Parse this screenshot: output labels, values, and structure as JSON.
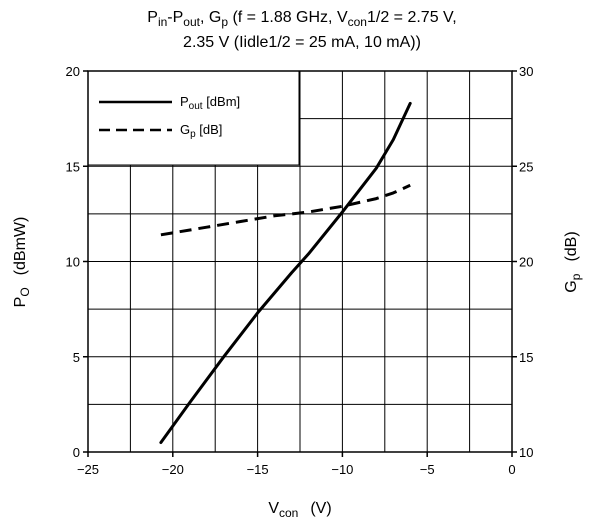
{
  "chart_data": {
    "type": "line",
    "title": {
      "line1": {
        "p1": "P",
        "s1": "in",
        "p2": "-P",
        "s2": "out",
        "p3": ", G",
        "s3": "p",
        "p4": " (f = 1.88 GHz, V",
        "s4": "con",
        "p5": "1/2 = 2.75 V,"
      },
      "line2": "2.35 V (Iidle1/2 = 25 mA, 10 mA))"
    },
    "xlabel": {
      "base": "V",
      "sub": "con",
      "unit": "(V)"
    },
    "ylabel_left": {
      "base": "P",
      "sub": "O",
      "unit": "(dBmW)"
    },
    "ylabel_right": {
      "base": "G",
      "sub": "p",
      "unit": "(dB)"
    },
    "xlim": [
      -25,
      0
    ],
    "ylim_left": [
      0,
      20
    ],
    "ylim_right": [
      10,
      30
    ],
    "x_ticks": [
      "−25",
      "−20",
      "−15",
      "−10",
      "−5",
      "0"
    ],
    "x_tick_values": [
      -25,
      -20,
      -15,
      -10,
      -5,
      0
    ],
    "y_left_ticks": [
      "0",
      "5",
      "10",
      "15",
      "20"
    ],
    "y_left_tick_values": [
      0,
      5,
      10,
      15,
      20
    ],
    "y_right_ticks": [
      "10",
      "15",
      "20",
      "25",
      "30"
    ],
    "y_right_tick_values": [
      10,
      15,
      20,
      25,
      30
    ],
    "grid": true,
    "legend": {
      "placement": "top-left",
      "items": [
        {
          "base": "P",
          "sub": "out",
          "unit": " [dBm]",
          "style": "solid"
        },
        {
          "base": "G",
          "sub": "p",
          "unit": " [dB]",
          "style": "dashed"
        }
      ]
    },
    "series": [
      {
        "name": "Pout [dBm]",
        "axis": "left",
        "style": "solid",
        "x": [
          -20.7,
          -19.0,
          -17.0,
          -15.0,
          -13.0,
          -12.0,
          -10.0,
          -8.0,
          -7.0,
          -6.0
        ],
        "y": [
          0.5,
          2.6,
          5.0,
          7.3,
          9.4,
          10.4,
          12.6,
          14.9,
          16.4,
          18.3
        ]
      },
      {
        "name": "Gp [dB]",
        "axis": "right",
        "style": "dashed",
        "x": [
          -20.7,
          -18.0,
          -16.0,
          -14.0,
          -12.0,
          -10.0,
          -8.0,
          -7.0,
          -6.0
        ],
        "y": [
          21.4,
          21.8,
          22.1,
          22.4,
          22.6,
          22.9,
          23.3,
          23.6,
          24.0
        ]
      }
    ]
  }
}
